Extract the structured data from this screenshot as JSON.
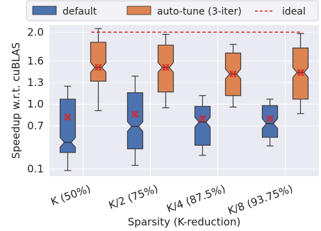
{
  "chart_data": {
    "type": "box",
    "categories": [
      "K (50%)",
      "K/2 (75%)",
      "K/4 (87.5%)",
      "K/8 (93.75%)"
    ],
    "xlabel": "Sparsity (K-reduction)",
    "ylabel": "Speedup w.r.t. cuBLAS",
    "y_ticks": [
      "0.1",
      "0.7",
      "1.0",
      "1.3",
      "1.6",
      "2.0"
    ],
    "y_tick_values": [
      0.1,
      0.7,
      1.0,
      1.3,
      1.6,
      2.0
    ],
    "ylim": [
      0.0,
      2.1
    ],
    "grid": true,
    "legend_position": "top",
    "ideal": {
      "label": "ideal",
      "value": 2.0,
      "color": "#d62728"
    },
    "series": [
      {
        "name": "default",
        "color": "#4c72b0",
        "boxes": [
          {
            "whislo": 0.08,
            "q1": 0.33,
            "med": 0.47,
            "q3": 1.07,
            "whishi": 1.25,
            "mean": 0.82
          },
          {
            "whislo": 0.15,
            "q1": 0.38,
            "med": 0.69,
            "q3": 1.16,
            "whishi": 1.39,
            "mean": 0.86
          },
          {
            "whislo": 0.29,
            "q1": 0.43,
            "med": 0.75,
            "q3": 0.97,
            "whishi": 1.12,
            "mean": 0.8
          },
          {
            "whislo": 0.42,
            "q1": 0.54,
            "med": 0.73,
            "q3": 0.98,
            "whishi": 1.07,
            "mean": 0.8
          }
        ]
      },
      {
        "name": "auto-tune (3-iter)",
        "color": "#dd8452",
        "boxes": [
          {
            "whislo": 0.91,
            "q1": 1.32,
            "med": 1.51,
            "q3": 1.86,
            "whishi": 2.05,
            "mean": 1.51
          },
          {
            "whislo": 0.95,
            "q1": 1.17,
            "med": 1.51,
            "q3": 1.82,
            "whishi": 1.97,
            "mean": 1.51
          },
          {
            "whislo": 0.96,
            "q1": 1.12,
            "med": 1.42,
            "q3": 1.71,
            "whishi": 1.83,
            "mean": 1.42
          },
          {
            "whislo": 0.87,
            "q1": 1.07,
            "med": 1.44,
            "q3": 1.78,
            "whishi": 1.98,
            "mean": 1.44
          }
        ]
      }
    ]
  }
}
